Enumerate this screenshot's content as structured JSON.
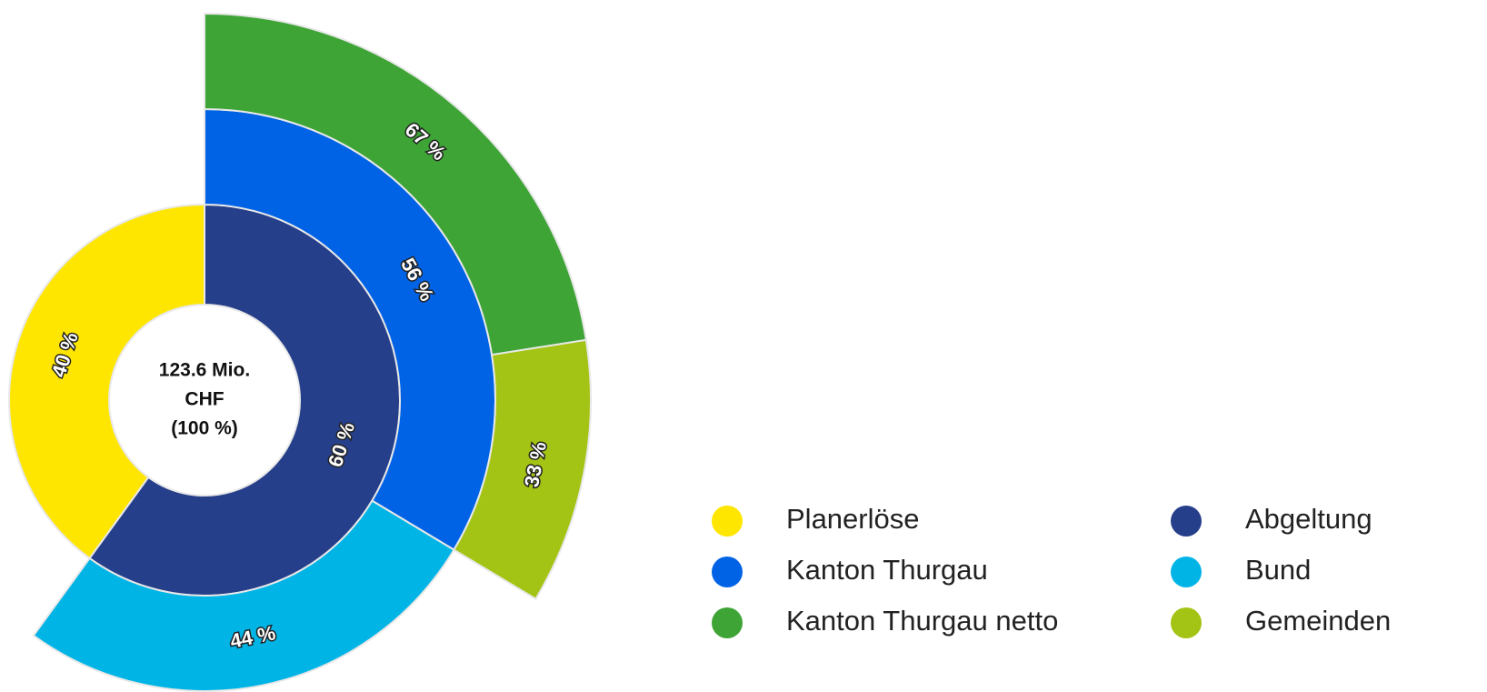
{
  "chart_data": {
    "type": "sunburst",
    "center_label": [
      "123.6 Mio.",
      "CHF",
      "(100 %)"
    ],
    "children": [
      {
        "name": "Planerlöse",
        "color": "#ffe600",
        "value": 40,
        "value_label": "40 %"
      },
      {
        "name": "Abgeltung",
        "color": "#263f8a",
        "value": 60,
        "value_label": "60 %",
        "children": [
          {
            "name": "Kanton Thurgau",
            "color": "#0063e5",
            "value": 56,
            "value_label": "56 %",
            "children": [
              {
                "name": "Kanton Thurgau netto",
                "color": "#3da435",
                "value": 67,
                "value_label": "67 %"
              },
              {
                "name": "Gemeinden",
                "color": "#a3c414",
                "value": 33,
                "value_label": "33 %"
              }
            ]
          },
          {
            "name": "Bund",
            "color": "#00b4e6",
            "value": 44,
            "value_label": "44 %"
          }
        ]
      }
    ]
  }
}
